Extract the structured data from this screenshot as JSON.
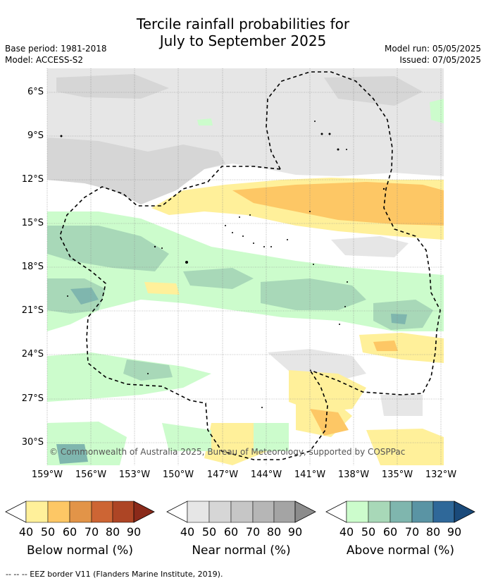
{
  "title_line1": "Tercile rainfall probabilities for",
  "title_line2": "July to September 2025",
  "base_period": "Base period: 1981-2018",
  "model": "Model: ACCESS-S2",
  "model_run": "Model run: 05/05/2025",
  "issued": "Issued: 07/05/2025",
  "lat_ticks": [
    "6°S",
    "9°S",
    "12°S",
    "15°S",
    "18°S",
    "21°S",
    "24°S",
    "27°S",
    "30°S"
  ],
  "lon_ticks": [
    "159°W",
    "156°W",
    "153°W",
    "150°W",
    "147°W",
    "144°W",
    "141°W",
    "138°W",
    "135°W",
    "132°W"
  ],
  "copyright": "© Commonwealth of Australia 2025, Bureau of Meteorology, supported by COSPPac",
  "colorbars": [
    {
      "label": "Below normal (%)",
      "ticks": [
        "40",
        "50",
        "60",
        "70",
        "80",
        "90"
      ],
      "colors": [
        "#fff09a",
        "#fdc765",
        "#e29448",
        "#cd6534",
        "#ad4525",
        "#8a2a1a"
      ]
    },
    {
      "label": "Near normal (%)",
      "ticks": [
        "40",
        "50",
        "60",
        "70",
        "80",
        "90"
      ],
      "colors": [
        "#e6e6e6",
        "#d6d6d6",
        "#c6c6c6",
        "#b6b6b6",
        "#a4a4a4",
        "#8c8c8c"
      ]
    },
    {
      "label": "Above normal (%)",
      "ticks": [
        "40",
        "50",
        "60",
        "70",
        "80",
        "90"
      ],
      "colors": [
        "#ccfccc",
        "#a8d8b8",
        "#7fb6ae",
        "#5a94a4",
        "#2f6899",
        "#1a4a7a"
      ]
    }
  ],
  "eez_note": "--  --  -- EEZ border V11 (Flanders Marine Institute, 2019)."
}
